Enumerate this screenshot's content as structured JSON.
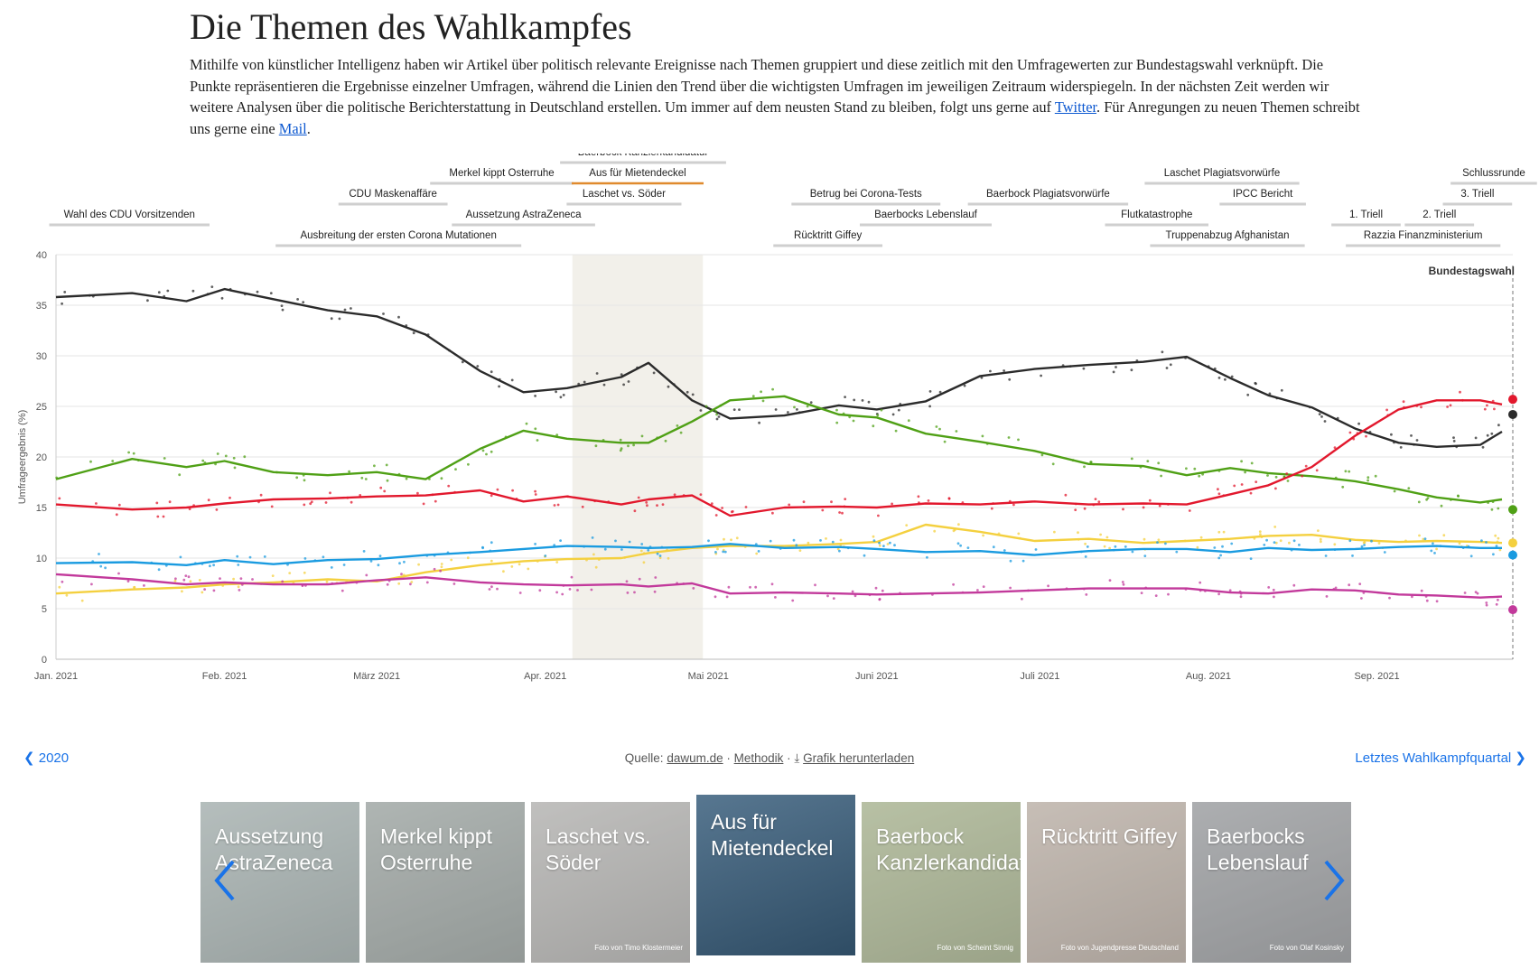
{
  "page": {
    "title": "Die Themen des Wahlkampfes",
    "intro_text": "Mithilfe von künstlicher Intelligenz haben wir Artikel über politisch relevante Ereignisse nach Themen gruppiert und diese zeitlich mit den Umfragewerten zur Bundestagswahl verknüpft. Die Punkte repräsentieren die Ergebnisse einzelner Umfragen, während die Linien den Trend über die wichtigsten Umfragen im jeweiligen Zeitraum widerspiegeln. In der nächsten Zeit werden wir weitere Analysen über die politische Berichterstattung in Deutschland erstellen. Um immer auf dem neusten Stand zu bleiben, folgt uns gerne auf ",
    "twitter_link": "Twitter",
    "intro_text2": ". Für Anregungen zu neuen Themen schreibt uns gerne eine ",
    "mail_link": "Mail",
    "intro_end": "."
  },
  "nav": {
    "prev_label": "2020",
    "next_label": "Letztes Wahlkampfquartal"
  },
  "source": {
    "prefix": "Quelle:",
    "dawum": "dawum.de",
    "methodik": "Methodik",
    "download": "Grafik herunterladen"
  },
  "chart_data": {
    "type": "line",
    "ylabel": "Umfrageergebnis (%)",
    "ylim": [
      0,
      40
    ],
    "yticks": [
      0,
      5,
      10,
      15,
      20,
      25,
      30,
      35,
      40
    ],
    "xlim": [
      "2021-01-01",
      "2021-09-26"
    ],
    "xticks": [
      {
        "date": "2021-01-01",
        "label": "Jan. 2021"
      },
      {
        "date": "2021-02-01",
        "label": "Feb. 2021"
      },
      {
        "date": "2021-03-01",
        "label": "März 2021"
      },
      {
        "date": "2021-04-01",
        "label": "Apr. 2021"
      },
      {
        "date": "2021-05-01",
        "label": "Mai 2021"
      },
      {
        "date": "2021-06-01",
        "label": "Juni 2021"
      },
      {
        "date": "2021-07-01",
        "label": "Juli 2021"
      },
      {
        "date": "2021-08-01",
        "label": "Aug. 2021"
      },
      {
        "date": "2021-09-01",
        "label": "Sep. 2021"
      }
    ],
    "election": {
      "date": "2021-09-26",
      "label": "Bundestagswahl"
    },
    "highlight": {
      "start": "2021-04-06",
      "end": "2021-04-30"
    },
    "events": [
      {
        "label": "Baerbock Kanzlerkandidatur",
        "start": "2021-04-19",
        "end": "2021-04-19",
        "row": 0
      },
      {
        "label": "Merkel kippt Osterruhe",
        "start": "2021-03-24",
        "end": "2021-03-24",
        "row": 1
      },
      {
        "label": "Aus für Mietendeckel",
        "start": "2021-04-06",
        "end": "2021-04-30",
        "row": 1,
        "active": true
      },
      {
        "label": "Laschet Plagiatsvorwürfe",
        "start": "2021-08-01",
        "end": "2021-08-06",
        "row": 1
      },
      {
        "label": "Schlussrunde",
        "start": "2021-09-22",
        "end": "2021-09-23",
        "row": 1
      },
      {
        "label": "CDU Maskenaffäre",
        "start": "2021-02-26",
        "end": "2021-03-10",
        "row": 2
      },
      {
        "label": "Laschet vs. Söder",
        "start": "2021-04-11",
        "end": "2021-04-20",
        "row": 2
      },
      {
        "label": "Betrug bei Corona-Tests",
        "start": "2021-05-30",
        "end": "2021-05-30",
        "row": 2
      },
      {
        "label": "Baerbock Plagiatsvorwürfe",
        "start": "2021-06-26",
        "end": "2021-07-09",
        "row": 2
      },
      {
        "label": "IPCC Bericht",
        "start": "2021-08-09",
        "end": "2021-08-13",
        "row": 2
      },
      {
        "label": "3. Triell",
        "start": "2021-09-19",
        "end": "2021-09-20",
        "row": 2
      },
      {
        "label": "Wahl des CDU Vorsitzenden",
        "start": "2021-01-01",
        "end": "2021-01-28",
        "row": 3
      },
      {
        "label": "Aussetzung AstraZeneca",
        "start": "2021-03-10",
        "end": "2021-04-15",
        "row": 3
      },
      {
        "label": "Baerbocks Lebenslauf",
        "start": "2021-05-31",
        "end": "2021-06-20",
        "row": 3
      },
      {
        "label": "Flutkatastrophe",
        "start": "2021-07-14",
        "end": "2021-07-31",
        "row": 3
      },
      {
        "label": "1. Triell",
        "start": "2021-08-29",
        "end": "2021-08-31",
        "row": 3
      },
      {
        "label": "2. Triell",
        "start": "2021-09-12",
        "end": "2021-09-13",
        "row": 3
      },
      {
        "label": "Ausbreitung der ersten Corona Mutationen",
        "start": "2021-01-08",
        "end": "2021-04-30",
        "row": 4
      },
      {
        "label": "Rücktritt Giffey",
        "start": "2021-05-13",
        "end": "2021-06-02",
        "row": 4
      },
      {
        "label": "Truppenabzug Afghanistan",
        "start": "2021-07-16",
        "end": "2021-08-24",
        "row": 4
      },
      {
        "label": "Razzia Finanzministerium",
        "start": "2021-09-09",
        "end": "2021-09-10",
        "row": 4
      }
    ],
    "series": [
      {
        "color": "#2b2b2b",
        "end_value": 24.2,
        "x": [
          "2021-01-01",
          "2021-01-15",
          "2021-01-25",
          "2021-02-01",
          "2021-02-10",
          "2021-02-20",
          "2021-03-01",
          "2021-03-10",
          "2021-03-20",
          "2021-03-28",
          "2021-04-05",
          "2021-04-15",
          "2021-04-20",
          "2021-04-28",
          "2021-05-05",
          "2021-05-15",
          "2021-05-25",
          "2021-06-01",
          "2021-06-10",
          "2021-06-20",
          "2021-06-30",
          "2021-07-10",
          "2021-07-20",
          "2021-07-28",
          "2021-08-05",
          "2021-08-12",
          "2021-08-20",
          "2021-08-28",
          "2021-09-05",
          "2021-09-12",
          "2021-09-20",
          "2021-09-24"
        ],
        "values": [
          35.8,
          36.2,
          35.4,
          36.6,
          35.6,
          34.5,
          33.9,
          32.1,
          28.5,
          26.4,
          26.8,
          27.9,
          29.3,
          25.6,
          23.8,
          24.1,
          25.1,
          24.7,
          25.5,
          28.0,
          28.7,
          29.1,
          29.4,
          29.9,
          27.8,
          26.1,
          24.9,
          22.8,
          21.4,
          21.0,
          21.2,
          22.5
        ]
      },
      {
        "color": "#4fa015",
        "end_value": 14.8,
        "x": [
          "2021-01-01",
          "2021-01-15",
          "2021-01-25",
          "2021-02-01",
          "2021-02-10",
          "2021-02-20",
          "2021-03-01",
          "2021-03-10",
          "2021-03-20",
          "2021-03-28",
          "2021-04-05",
          "2021-04-15",
          "2021-04-20",
          "2021-04-28",
          "2021-05-05",
          "2021-05-15",
          "2021-05-25",
          "2021-06-01",
          "2021-06-10",
          "2021-06-20",
          "2021-06-30",
          "2021-07-10",
          "2021-07-20",
          "2021-07-28",
          "2021-08-05",
          "2021-08-12",
          "2021-08-20",
          "2021-08-28",
          "2021-09-05",
          "2021-09-12",
          "2021-09-20",
          "2021-09-24"
        ],
        "values": [
          17.8,
          19.8,
          19.0,
          19.6,
          18.5,
          18.2,
          18.5,
          17.8,
          20.8,
          22.6,
          21.8,
          21.4,
          21.4,
          23.5,
          25.6,
          26.0,
          24.2,
          23.9,
          22.3,
          21.5,
          20.6,
          19.3,
          19.1,
          18.2,
          18.9,
          18.4,
          18.1,
          17.6,
          16.8,
          16.0,
          15.5,
          15.8
        ]
      },
      {
        "color": "#e2182d",
        "end_value": 25.7,
        "x": [
          "2021-01-01",
          "2021-01-15",
          "2021-01-25",
          "2021-02-01",
          "2021-02-10",
          "2021-02-20",
          "2021-03-01",
          "2021-03-10",
          "2021-03-20",
          "2021-03-28",
          "2021-04-05",
          "2021-04-15",
          "2021-04-20",
          "2021-04-28",
          "2021-05-05",
          "2021-05-15",
          "2021-05-25",
          "2021-06-01",
          "2021-06-10",
          "2021-06-20",
          "2021-06-30",
          "2021-07-10",
          "2021-07-20",
          "2021-07-28",
          "2021-08-05",
          "2021-08-12",
          "2021-08-20",
          "2021-08-28",
          "2021-09-05",
          "2021-09-12",
          "2021-09-20",
          "2021-09-24"
        ],
        "values": [
          15.3,
          14.8,
          15.0,
          15.4,
          15.8,
          15.9,
          16.1,
          16.2,
          16.7,
          15.6,
          16.1,
          15.3,
          15.8,
          16.2,
          14.2,
          15.0,
          15.1,
          15.0,
          15.4,
          15.3,
          15.6,
          15.3,
          15.4,
          15.3,
          16.3,
          17.2,
          19.0,
          22.1,
          24.7,
          25.6,
          25.6,
          25.2
        ]
      },
      {
        "color": "#f4d03f",
        "end_value": 11.5,
        "x": [
          "2021-01-01",
          "2021-01-15",
          "2021-01-25",
          "2021-02-01",
          "2021-02-10",
          "2021-02-20",
          "2021-03-01",
          "2021-03-10",
          "2021-03-20",
          "2021-03-28",
          "2021-04-05",
          "2021-04-15",
          "2021-04-20",
          "2021-04-28",
          "2021-05-05",
          "2021-05-15",
          "2021-05-25",
          "2021-06-01",
          "2021-06-10",
          "2021-06-20",
          "2021-06-30",
          "2021-07-10",
          "2021-07-20",
          "2021-07-28",
          "2021-08-05",
          "2021-08-12",
          "2021-08-20",
          "2021-08-28",
          "2021-09-05",
          "2021-09-12",
          "2021-09-20",
          "2021-09-24"
        ],
        "values": [
          6.5,
          6.9,
          7.1,
          7.4,
          7.6,
          7.9,
          7.7,
          8.6,
          9.3,
          9.7,
          9.9,
          10.0,
          10.5,
          11.0,
          11.2,
          11.2,
          11.4,
          11.6,
          13.3,
          12.6,
          11.7,
          11.9,
          11.5,
          11.7,
          11.9,
          12.2,
          12.3,
          11.8,
          11.6,
          11.7,
          11.6,
          11.5
        ]
      },
      {
        "color": "#1a9be0",
        "end_value": 10.3,
        "x": [
          "2021-01-01",
          "2021-01-15",
          "2021-01-25",
          "2021-02-01",
          "2021-02-10",
          "2021-02-20",
          "2021-03-01",
          "2021-03-10",
          "2021-03-20",
          "2021-03-28",
          "2021-04-05",
          "2021-04-15",
          "2021-04-20",
          "2021-04-28",
          "2021-05-05",
          "2021-05-15",
          "2021-05-25",
          "2021-06-01",
          "2021-06-10",
          "2021-06-20",
          "2021-06-30",
          "2021-07-10",
          "2021-07-20",
          "2021-07-28",
          "2021-08-05",
          "2021-08-12",
          "2021-08-20",
          "2021-08-28",
          "2021-09-05",
          "2021-09-12",
          "2021-09-20",
          "2021-09-24"
        ],
        "values": [
          9.5,
          9.6,
          9.3,
          9.8,
          9.4,
          9.8,
          9.9,
          10.3,
          10.6,
          10.9,
          11.2,
          11.1,
          11.0,
          11.1,
          11.4,
          11.0,
          11.1,
          10.9,
          10.6,
          10.7,
          10.3,
          10.7,
          10.9,
          10.9,
          10.6,
          11.0,
          10.8,
          10.9,
          11.1,
          11.2,
          11.0,
          11.0
        ]
      },
      {
        "color": "#c2399b",
        "end_value": 4.9,
        "x": [
          "2021-01-01",
          "2021-01-15",
          "2021-01-25",
          "2021-02-01",
          "2021-02-10",
          "2021-02-20",
          "2021-03-01",
          "2021-03-10",
          "2021-03-20",
          "2021-03-28",
          "2021-04-05",
          "2021-04-15",
          "2021-04-20",
          "2021-04-28",
          "2021-05-05",
          "2021-05-15",
          "2021-05-25",
          "2021-06-01",
          "2021-06-10",
          "2021-06-20",
          "2021-06-30",
          "2021-07-10",
          "2021-07-20",
          "2021-07-28",
          "2021-08-05",
          "2021-08-12",
          "2021-08-20",
          "2021-08-28",
          "2021-09-05",
          "2021-09-12",
          "2021-09-20",
          "2021-09-24"
        ],
        "values": [
          8.4,
          7.9,
          7.4,
          7.6,
          7.4,
          7.4,
          7.8,
          8.1,
          7.6,
          7.4,
          7.3,
          7.4,
          7.2,
          7.5,
          6.5,
          6.6,
          6.5,
          6.4,
          6.5,
          6.6,
          6.8,
          7.0,
          7.0,
          7.0,
          6.6,
          6.5,
          6.9,
          6.8,
          6.4,
          6.3,
          6.1,
          6.2
        ]
      }
    ]
  },
  "cards": [
    {
      "label": "Aussetzung AstraZeneca",
      "credit": "",
      "bg": "#7a8a88",
      "icon": "vaccine-vial-photo"
    },
    {
      "label": "Merkel kippt Osterruhe",
      "credit": "",
      "bg": "#6f7a76",
      "icon": "person-lying-photo"
    },
    {
      "label": "Laschet vs. Söder",
      "credit": "Foto von Timo Klostermeier",
      "bg": "#8e8d8a",
      "icon": "cdu-wall-photo"
    },
    {
      "label": "Aus für Mietendeckel",
      "credit": "",
      "bg": "#3a5f7d",
      "icon": "building-photo",
      "active": true
    },
    {
      "label": "Baerbock Kanzlerkandidatur",
      "credit": "Foto von Scheint Sinnig",
      "bg": "#7f8f5c",
      "icon": "portrait-photo"
    },
    {
      "label": "Rücktritt Giffey",
      "credit": "Foto von Jugendpresse Deutschland",
      "bg": "#9a8a7c",
      "icon": "portrait-photo"
    },
    {
      "label": "Baerbocks Lebenslauf",
      "credit": "Foto von Olaf Kosinsky",
      "bg": "#6b6e72",
      "icon": "portrait-photo"
    }
  ]
}
